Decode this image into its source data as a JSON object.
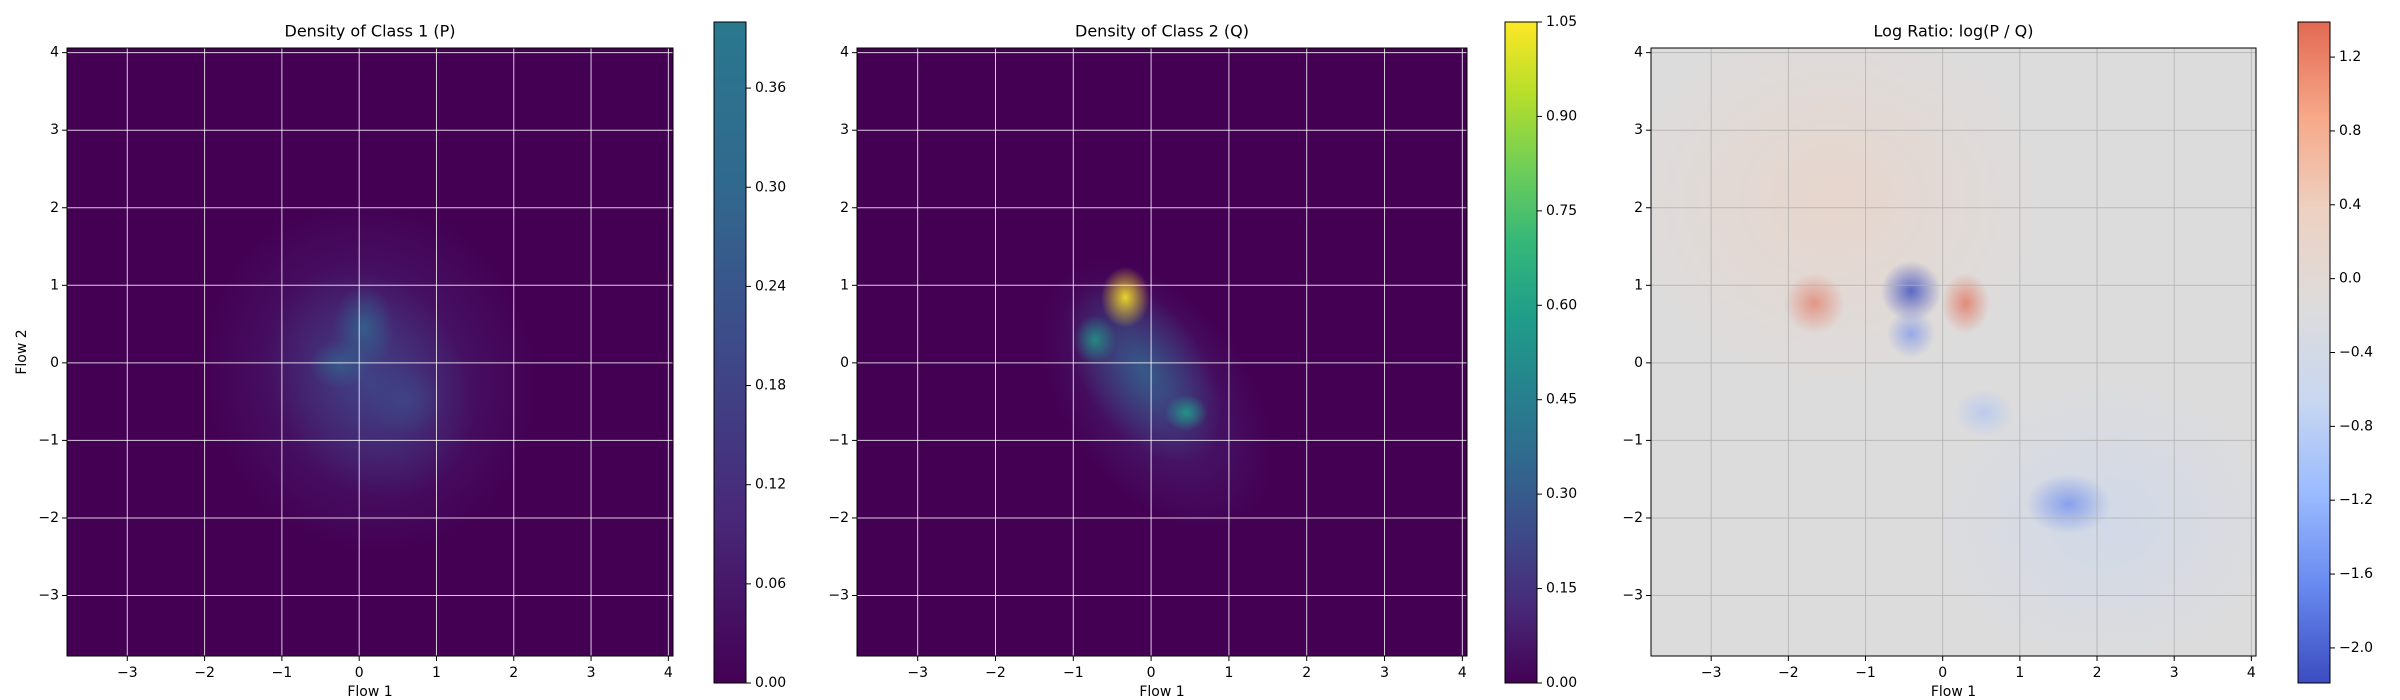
{
  "chart_data": [
    {
      "type": "contour",
      "title": "Density of Class 1 (P)",
      "xlabel": "Flow 1",
      "ylabel": "Flow 2",
      "xlim": [
        -3.78,
        4.06
      ],
      "ylim": [
        -3.78,
        4.06
      ],
      "xticks": [
        {
          "value": -3,
          "label": "−3"
        },
        {
          "value": -2,
          "label": "−2"
        },
        {
          "value": -1,
          "label": "−1"
        },
        0,
        1,
        2,
        3,
        4
      ],
      "yticks": [
        {
          "value": -3,
          "label": "−3"
        },
        {
          "value": -2,
          "label": "−2"
        },
        {
          "value": -1,
          "label": "−1"
        },
        0,
        1,
        2,
        3,
        4
      ],
      "grid": true,
      "grid_color": "#ffffff",
      "cmap": [
        "#440154",
        "#482878",
        "#3e4989",
        "#31688e",
        "#2a788e"
      ],
      "clim": [
        0,
        0.4
      ],
      "cticks": [
        {
          "value": 0,
          "label": "0.00"
        },
        0.06,
        0.12,
        0.18,
        0.24,
        {
          "value": 0.3,
          "label": "0.30"
        },
        0.36
      ]
    },
    {
      "type": "contour",
      "title": "Density of Class 2 (Q)",
      "xlabel": "Flow 1",
      "xlim": [
        -3.78,
        4.06
      ],
      "ylim": [
        -3.78,
        4.06
      ],
      "xticks": [
        {
          "value": -3,
          "label": "−3"
        },
        {
          "value": -2,
          "label": "−2"
        },
        {
          "value": -1,
          "label": "−1"
        },
        0,
        1,
        2,
        3,
        4
      ],
      "yticks": [
        {
          "value": -3,
          "label": "−3"
        },
        {
          "value": -2,
          "label": "−2"
        },
        {
          "value": -1,
          "label": "−1"
        },
        0,
        1,
        2,
        3,
        4
      ],
      "grid": true,
      "grid_color": "#ffffff",
      "cmap": [
        "#440154",
        "#482878",
        "#3e4989",
        "#31688e",
        "#26828e",
        "#1f9e89",
        "#35b779",
        "#6ece58",
        "#b5de2b",
        "#fde725"
      ],
      "clim": [
        0,
        1.05
      ],
      "cticks": [
        {
          "value": 0,
          "label": "0.00"
        },
        0.15,
        {
          "value": 0.3,
          "label": "0.30"
        },
        0.45,
        {
          "value": 0.6,
          "label": "0.60"
        },
        0.75,
        {
          "value": 0.9,
          "label": "0.90"
        },
        1.05
      ]
    },
    {
      "type": "contour",
      "title": "Log Ratio: log(P / Q)",
      "xlabel": "Flow 1",
      "xlim": [
        -3.78,
        4.06
      ],
      "ylim": [
        -3.78,
        4.06
      ],
      "xticks": [
        {
          "value": -3,
          "label": "−3"
        },
        {
          "value": -2,
          "label": "−2"
        },
        {
          "value": -1,
          "label": "−1"
        },
        0,
        1,
        2,
        3,
        4
      ],
      "yticks": [
        {
          "value": -3,
          "label": "−3"
        },
        {
          "value": -2,
          "label": "−2"
        },
        {
          "value": -1,
          "label": "−1"
        },
        0,
        1,
        2,
        3,
        4
      ],
      "grid": true,
      "grid_color": "#b0b0b0",
      "cmap": [
        "#3b4cc0",
        "#6788ee",
        "#9abbff",
        "#c9d7f0",
        "#dddcdc",
        "#edd1c2",
        "#f7a889",
        "#e26952"
      ],
      "clim": [
        -2.19,
        1.39
      ],
      "cticks": [
        {
          "value": -2,
          "label": "−2.0"
        },
        {
          "value": -1.6,
          "label": "−1.6"
        },
        {
          "value": -1.2,
          "label": "−1.2"
        },
        {
          "value": -0.8,
          "label": "−0.8"
        },
        {
          "value": -0.4,
          "label": "−0.4"
        },
        {
          "value": 0,
          "label": "0.0"
        },
        0.4,
        0.8,
        1.2
      ]
    }
  ]
}
